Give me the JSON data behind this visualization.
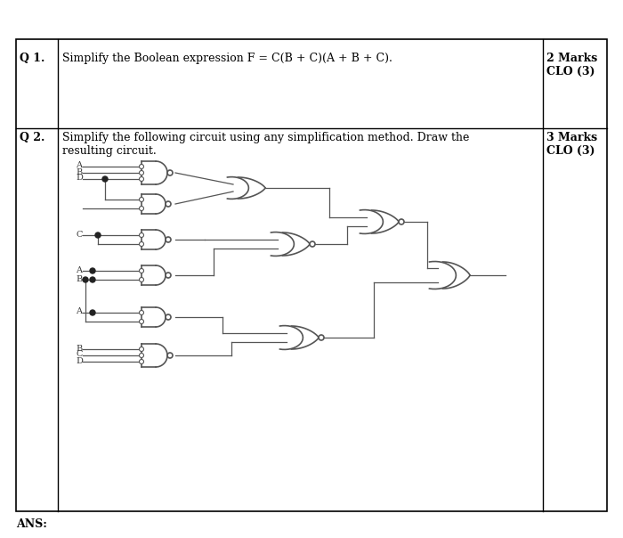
{
  "title": "",
  "background_color": "#ffffff",
  "border_color": "#000000",
  "q1_num": "Q 1.",
  "q1_text": "Simplify the Boolean expression F = C(B + C)(A + B + C).",
  "q1_marks": "2 Marks",
  "q1_clo": "CLO (3)",
  "q2_num": "Q 2.",
  "q2_text": "Simplify the following circuit using any simplification method. Draw the\nresulting circuit.",
  "q2_marks": "3 Marks",
  "q2_clo": "CLO (3)",
  "ans_text": "ANS:",
  "gate_color": "#888888",
  "wire_color": "#555555",
  "text_color": "#000000",
  "label_color": "#333333"
}
